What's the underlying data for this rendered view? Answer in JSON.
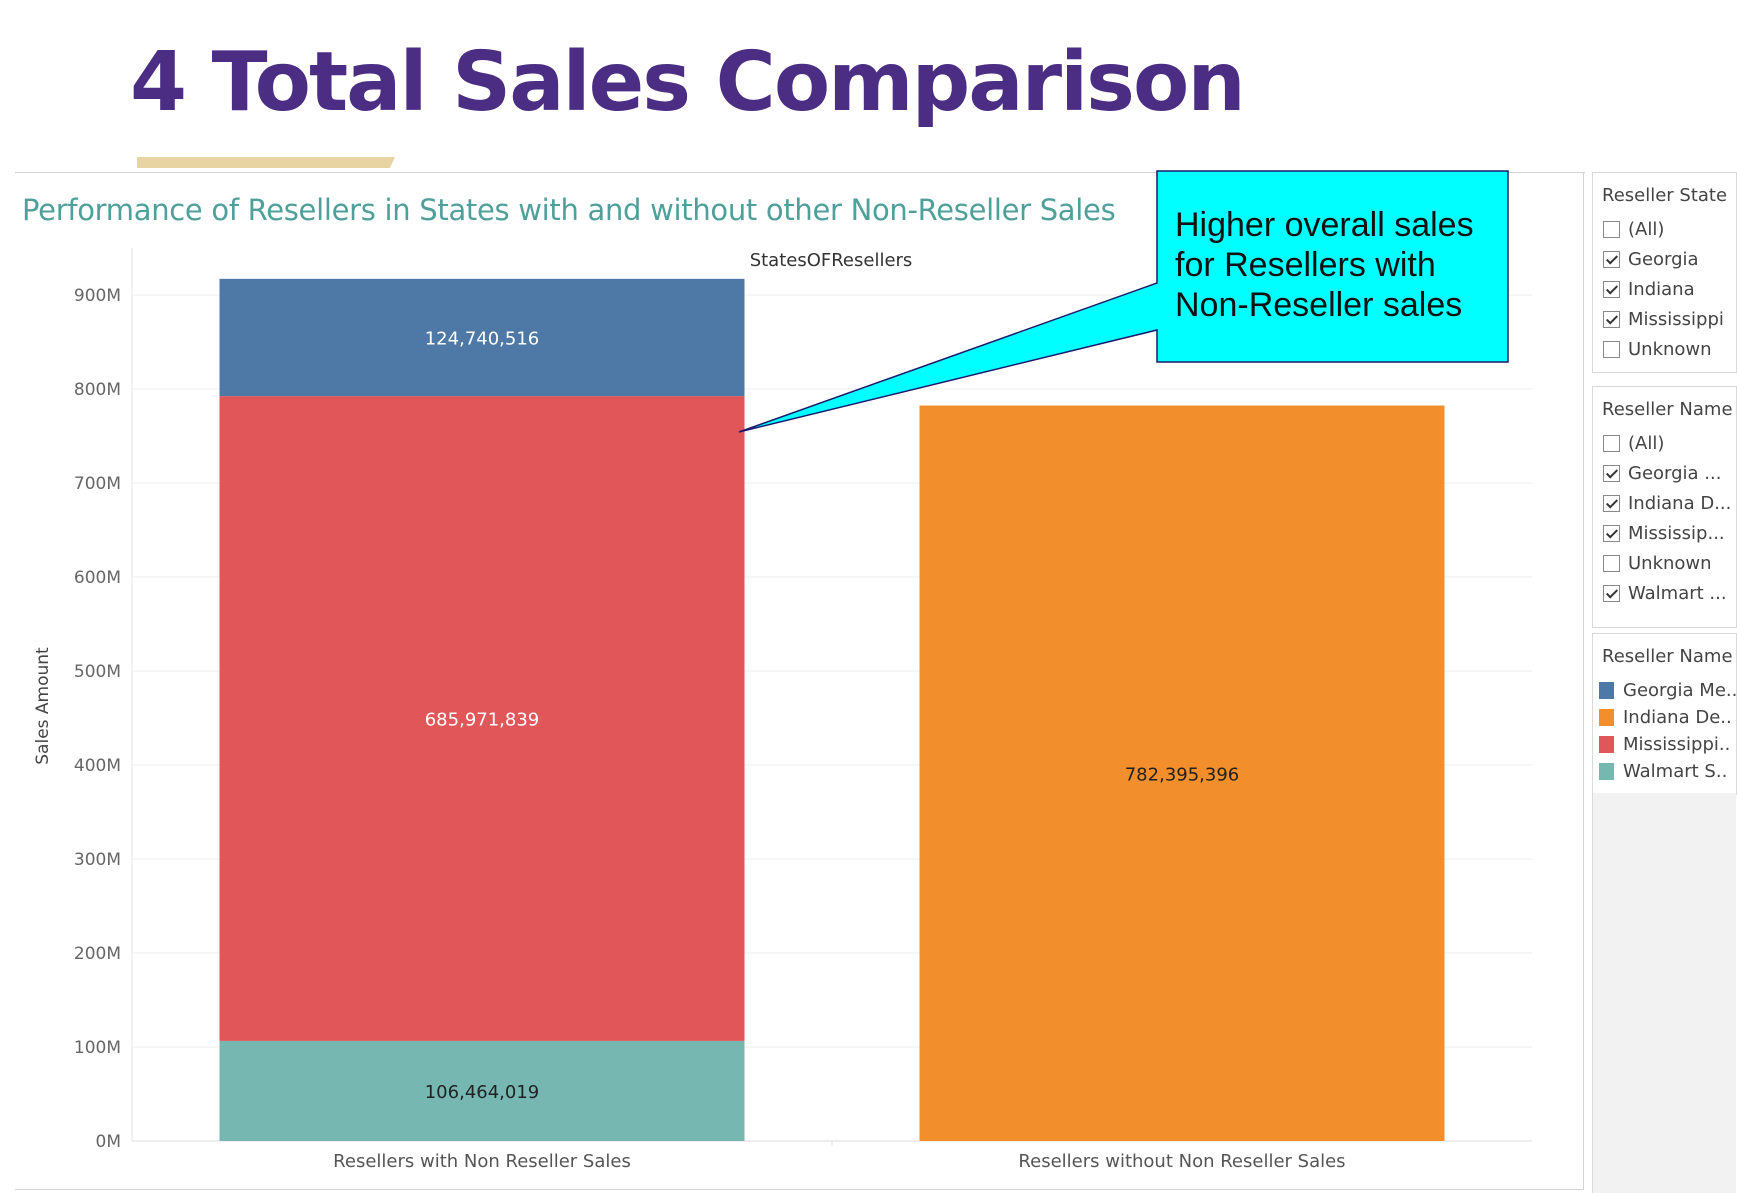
{
  "slide": {
    "title": "4  Total Sales Comparison"
  },
  "viz": {
    "title": "Performance of Resellers in States with and without other Non-Reseller Sales"
  },
  "annotation": {
    "text": "Higher overall sales for Resellers with Non-Reseller sales",
    "fill": "#00ffff"
  },
  "filters": {
    "state": {
      "title": "Reseller State",
      "items": [
        {
          "label": "(All)",
          "checked": false
        },
        {
          "label": "Georgia",
          "checked": true
        },
        {
          "label": "Indiana",
          "checked": true
        },
        {
          "label": "Mississippi",
          "checked": true
        },
        {
          "label": "Unknown",
          "checked": false
        }
      ]
    },
    "name": {
      "title": "Reseller Name",
      "items": [
        {
          "label": "(All)",
          "checked": false
        },
        {
          "label": "Georgia ...",
          "checked": true
        },
        {
          "label": "Indiana D...",
          "checked": true
        },
        {
          "label": "Mississip...",
          "checked": true
        },
        {
          "label": "Unknown",
          "checked": false
        },
        {
          "label": "Walmart ...",
          "checked": true
        }
      ]
    }
  },
  "legend": {
    "title": "Reseller Name",
    "items": [
      {
        "label": "Georgia Me..",
        "color": "#4e79a7"
      },
      {
        "label": "Indiana De..",
        "color": "#f28e2b"
      },
      {
        "label": "Mississippi..",
        "color": "#e15759"
      },
      {
        "label": "Walmart S..",
        "color": "#76b7b2"
      }
    ]
  },
  "chart_data": {
    "type": "bar",
    "stacked": true,
    "title": "StatesOFResellers",
    "xlabel": "",
    "ylabel": "Sales Amount",
    "ylim": [
      0,
      950000000
    ],
    "yticks": [
      0,
      100000000,
      200000000,
      300000000,
      400000000,
      500000000,
      600000000,
      700000000,
      800000000,
      900000000
    ],
    "ytick_labels": [
      "0M",
      "100M",
      "200M",
      "300M",
      "400M",
      "500M",
      "600M",
      "700M",
      "800M",
      "900M"
    ],
    "categories": [
      "Resellers with Non Reseller Sales",
      "Resellers without Non Reseller Sales"
    ],
    "grid": true,
    "series": [
      {
        "name": "Walmart S..",
        "color": "#76b7b2",
        "values": [
          106464019,
          0
        ],
        "labels": [
          "106,464,019",
          ""
        ],
        "label_color": "#222222"
      },
      {
        "name": "Mississippi..",
        "color": "#e15759",
        "values": [
          685971839,
          0
        ],
        "labels": [
          "685,971,839",
          ""
        ],
        "label_color": "#ffffff"
      },
      {
        "name": "Georgia Me..",
        "color": "#4e79a7",
        "values": [
          124740516,
          0
        ],
        "labels": [
          "124,740,516",
          ""
        ],
        "label_color": "#ffffff"
      },
      {
        "name": "Indiana De..",
        "color": "#f28e2b",
        "values": [
          0,
          782395396
        ],
        "labels": [
          "",
          "782,395,396"
        ],
        "label_color": "#222222"
      }
    ]
  }
}
